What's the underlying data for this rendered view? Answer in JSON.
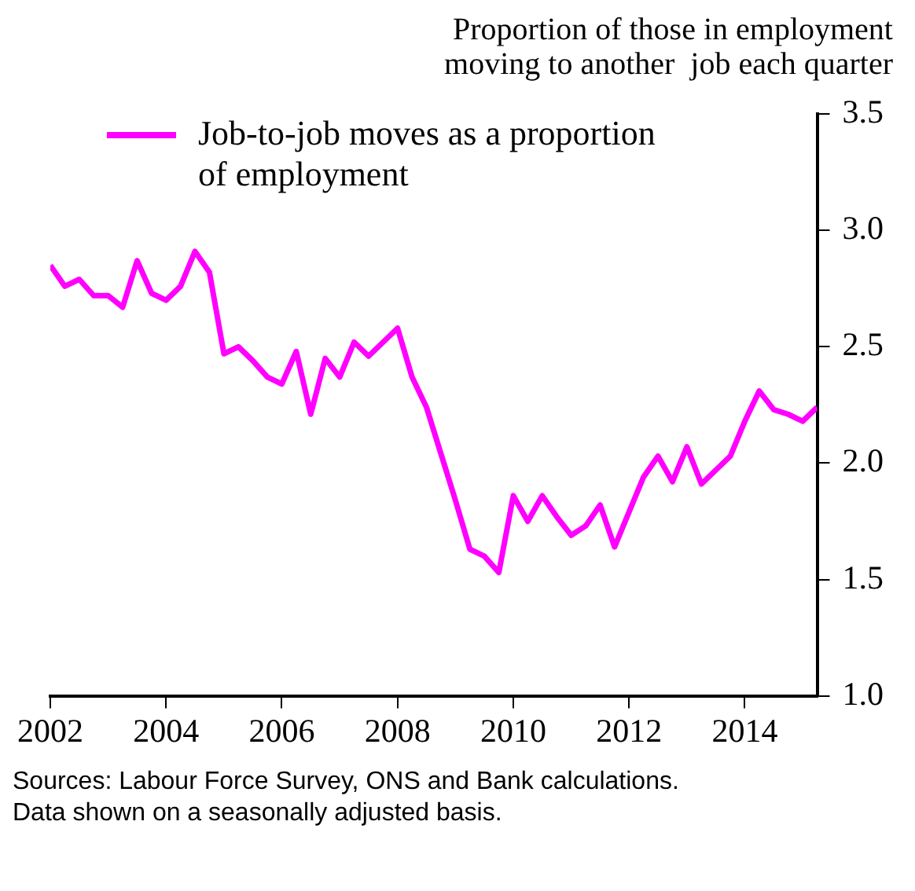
{
  "chart_data": {
    "type": "line",
    "title": "Proportion of those in employment\nmoving to another  job each quarter",
    "x": [
      2002,
      2002.25,
      2002.5,
      2002.75,
      2003,
      2003.25,
      2003.5,
      2003.75,
      2004,
      2004.25,
      2004.5,
      2004.75,
      2005,
      2005.25,
      2005.5,
      2005.75,
      2006,
      2006.25,
      2006.5,
      2006.75,
      2007,
      2007.25,
      2007.5,
      2007.75,
      2008,
      2008.25,
      2008.5,
      2008.75,
      2009,
      2009.25,
      2009.5,
      2009.75,
      2010,
      2010.25,
      2010.5,
      2010.75,
      2011,
      2011.25,
      2011.5,
      2011.75,
      2012,
      2012.25,
      2012.5,
      2012.75,
      2013,
      2013.25,
      2013.5,
      2013.75,
      2014,
      2014.25,
      2014.5,
      2014.75,
      2015,
      2015.25
    ],
    "series": [
      {
        "name": "Job-to-job moves as a proportion of employment",
        "color": "#ff00ff",
        "values": [
          2.85,
          2.76,
          2.79,
          2.72,
          2.72,
          2.67,
          2.87,
          2.73,
          2.7,
          2.76,
          2.91,
          2.82,
          2.47,
          2.5,
          2.44,
          2.37,
          2.34,
          2.48,
          2.21,
          2.45,
          2.37,
          2.52,
          2.46,
          2.52,
          2.58,
          2.37,
          2.24,
          2.04,
          1.84,
          1.63,
          1.6,
          1.53,
          1.86,
          1.75,
          1.86,
          1.77,
          1.69,
          1.73,
          1.82,
          1.64,
          1.79,
          1.94,
          2.03,
          1.92,
          2.07,
          1.91,
          1.97,
          2.03,
          2.18,
          2.31,
          2.23,
          2.21,
          2.18,
          2.24
        ]
      }
    ],
    "xlim": [
      2002,
      2015.25
    ],
    "xticks": [
      2002,
      2004,
      2006,
      2008,
      2010,
      2012,
      2014
    ],
    "ylim": [
      1,
      3.5
    ],
    "yticks": [
      {
        "value": 1,
        "label": "1.0"
      },
      {
        "value": 1.5,
        "label": "1.5"
      },
      {
        "value": 2,
        "label": "2.0"
      },
      {
        "value": 2.5,
        "label": "2.5"
      },
      {
        "value": 3,
        "label": "3.0"
      },
      {
        "value": 3.5,
        "label": "3.5"
      }
    ],
    "grid": false,
    "legend": "top left",
    "marker": "none",
    "line_style": "solid",
    "annotations": [
      "Sources: Labour Force Survey, ONS and Bank calculations.",
      "Data shown on a seasonally adjusted basis."
    ]
  }
}
